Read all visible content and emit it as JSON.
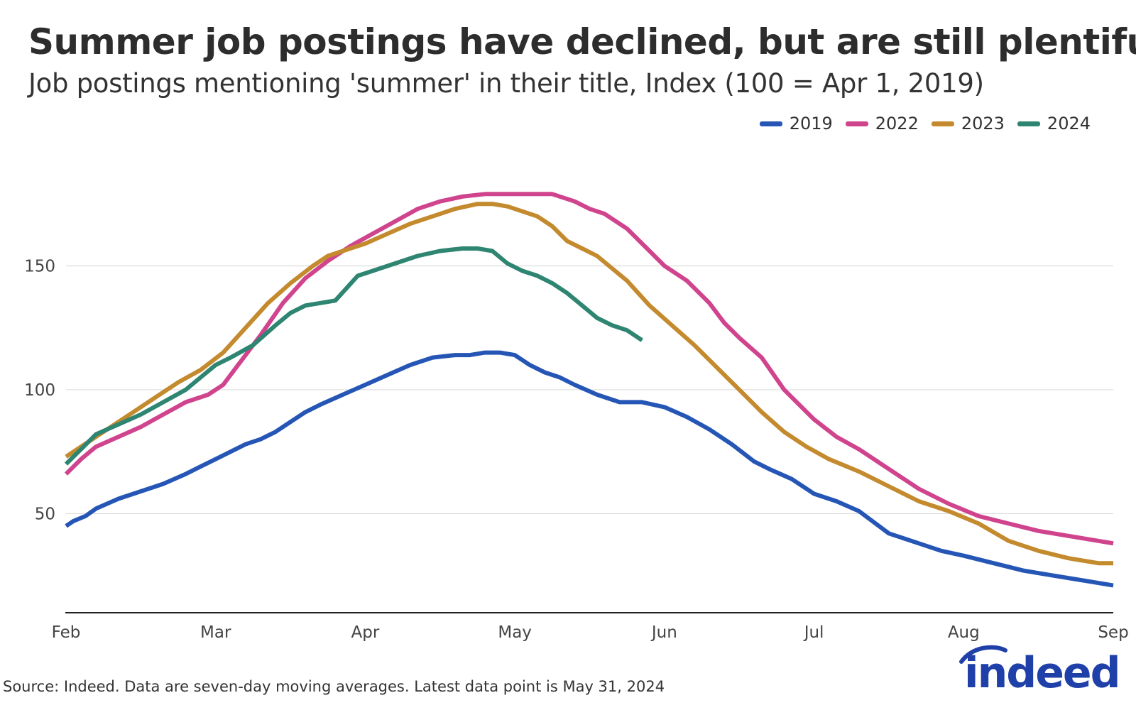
{
  "title": "Summer job postings have declined, but are still plentiful",
  "subtitle": "Job postings mentioning 'summer' in their title, Index (100 = Apr 1, 2019)",
  "source": "Source: Indeed. Data are seven-day moving averages. Latest data point is May 31, 2024",
  "logo_text": "indeed",
  "chart_data": {
    "type": "line",
    "title": "Summer job postings have declined, but are still plentiful",
    "ylabel": "",
    "xlabel": "",
    "ylim": [
      10,
      200
    ],
    "xlim": [
      0,
      7
    ],
    "grid": true,
    "legend_position": "top-right",
    "x_ticks": [
      {
        "x": 0,
        "label": "Feb"
      },
      {
        "x": 1,
        "label": "Mar"
      },
      {
        "x": 2,
        "label": "Apr"
      },
      {
        "x": 3,
        "label": "May"
      },
      {
        "x": 4,
        "label": "Jun"
      },
      {
        "x": 5,
        "label": "Jul"
      },
      {
        "x": 6,
        "label": "Aug"
      },
      {
        "x": 7,
        "label": "Sep"
      }
    ],
    "y_ticks": [
      50,
      100,
      150
    ],
    "series": [
      {
        "name": "2019",
        "color": "#2556b5",
        "x": [
          0,
          0.05,
          0.13,
          0.2,
          0.35,
          0.5,
          0.65,
          0.8,
          0.9,
          1.0,
          1.1,
          1.2,
          1.3,
          1.4,
          1.5,
          1.6,
          1.7,
          1.85,
          2.0,
          2.15,
          2.3,
          2.45,
          2.6,
          2.7,
          2.8,
          2.9,
          3.0,
          3.1,
          3.2,
          3.3,
          3.4,
          3.55,
          3.7,
          3.85,
          4.0,
          4.15,
          4.3,
          4.45,
          4.6,
          4.7,
          4.85,
          5.0,
          5.15,
          5.3,
          5.5,
          5.7,
          5.85,
          6.0,
          6.2,
          6.4,
          6.6,
          6.8,
          7.0
        ],
        "y": [
          45,
          47,
          49,
          52,
          56,
          59,
          62,
          66,
          69,
          72,
          75,
          78,
          80,
          83,
          87,
          91,
          94,
          98,
          102,
          106,
          110,
          113,
          114,
          114,
          115,
          115,
          114,
          110,
          107,
          105,
          102,
          98,
          95,
          95,
          93,
          89,
          84,
          78,
          71,
          68,
          64,
          58,
          55,
          51,
          42,
          38,
          35,
          33,
          30,
          27,
          25,
          23,
          21
        ]
      },
      {
        "name": "2022",
        "color": "#d0448e",
        "x": [
          0,
          0.1,
          0.2,
          0.35,
          0.5,
          0.65,
          0.8,
          0.95,
          1.05,
          1.15,
          1.3,
          1.45,
          1.6,
          1.75,
          1.9,
          2.05,
          2.2,
          2.35,
          2.5,
          2.65,
          2.8,
          2.95,
          3.1,
          3.25,
          3.4,
          3.5,
          3.6,
          3.75,
          3.9,
          4.0,
          4.15,
          4.3,
          4.4,
          4.5,
          4.65,
          4.8,
          5.0,
          5.15,
          5.3,
          5.5,
          5.7,
          5.9,
          6.1,
          6.3,
          6.5,
          6.7,
          6.9,
          7.0
        ],
        "y": [
          66,
          72,
          77,
          81,
          85,
          90,
          95,
          98,
          102,
          110,
          122,
          135,
          145,
          152,
          158,
          163,
          168,
          173,
          176,
          178,
          179,
          179,
          179,
          179,
          176,
          173,
          171,
          165,
          156,
          150,
          144,
          135,
          127,
          121,
          113,
          100,
          88,
          81,
          76,
          68,
          60,
          54,
          49,
          46,
          43,
          41,
          39,
          38
        ]
      },
      {
        "name": "2023",
        "color": "#c48a2e",
        "x": [
          0,
          0.15,
          0.3,
          0.45,
          0.6,
          0.75,
          0.9,
          1.05,
          1.2,
          1.35,
          1.5,
          1.65,
          1.75,
          1.85,
          2.0,
          2.15,
          2.3,
          2.45,
          2.6,
          2.75,
          2.85,
          2.95,
          3.05,
          3.15,
          3.25,
          3.35,
          3.45,
          3.55,
          3.65,
          3.75,
          3.9,
          4.05,
          4.2,
          4.35,
          4.5,
          4.65,
          4.8,
          4.95,
          5.1,
          5.3,
          5.5,
          5.7,
          5.9,
          6.1,
          6.3,
          6.5,
          6.7,
          6.9,
          7.0
        ],
        "y": [
          73,
          79,
          85,
          91,
          97,
          103,
          108,
          115,
          125,
          135,
          143,
          150,
          154,
          156,
          159,
          163,
          167,
          170,
          173,
          175,
          175,
          174,
          172,
          170,
          166,
          160,
          157,
          154,
          149,
          144,
          134,
          126,
          118,
          109,
          100,
          91,
          83,
          77,
          72,
          67,
          61,
          55,
          51,
          46,
          39,
          35,
          32,
          30,
          30
        ]
      },
      {
        "name": "2024",
        "color": "#2e8571",
        "x": [
          0,
          0.1,
          0.2,
          0.35,
          0.5,
          0.65,
          0.8,
          0.9,
          1.0,
          1.1,
          1.25,
          1.4,
          1.5,
          1.6,
          1.7,
          1.8,
          1.95,
          2.05,
          2.2,
          2.35,
          2.5,
          2.65,
          2.75,
          2.85,
          2.95,
          3.05,
          3.15,
          3.25,
          3.35,
          3.45,
          3.55,
          3.65,
          3.75,
          3.85
        ],
        "y": [
          70,
          76,
          82,
          86,
          90,
          95,
          100,
          105,
          110,
          113,
          118,
          126,
          131,
          134,
          135,
          136,
          146,
          148,
          151,
          154,
          156,
          157,
          157,
          156,
          151,
          148,
          146,
          143,
          139,
          134,
          129,
          126,
          124,
          120
        ]
      }
    ]
  }
}
